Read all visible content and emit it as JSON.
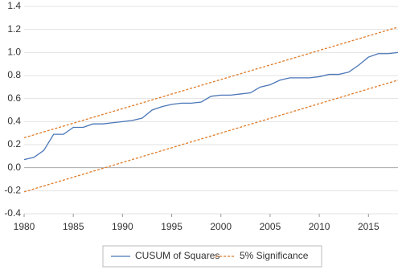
{
  "chart_data": {
    "type": "line",
    "x": [
      1980,
      1981,
      1982,
      1983,
      1984,
      1985,
      1986,
      1987,
      1988,
      1989,
      1990,
      1991,
      1992,
      1993,
      1994,
      1995,
      1996,
      1997,
      1998,
      1999,
      2000,
      2001,
      2002,
      2003,
      2004,
      2005,
      2006,
      2007,
      2008,
      2009,
      2010,
      2011,
      2012,
      2013,
      2014,
      2015,
      2016,
      2017,
      2018
    ],
    "series": [
      {
        "name": "CUSUM of Squares",
        "color": "#4a76b8",
        "values": [
          0.07,
          0.09,
          0.15,
          0.29,
          0.29,
          0.35,
          0.35,
          0.38,
          0.38,
          0.39,
          0.4,
          0.41,
          0.43,
          0.5,
          0.53,
          0.55,
          0.56,
          0.56,
          0.57,
          0.62,
          0.63,
          0.63,
          0.64,
          0.65,
          0.7,
          0.72,
          0.76,
          0.78,
          0.78,
          0.78,
          0.79,
          0.81,
          0.81,
          0.83,
          0.89,
          0.96,
          0.99,
          0.99,
          1.0
        ]
      }
    ],
    "bands": [
      {
        "name": "5% Significance",
        "color": "#e07b28",
        "x": [
          1980,
          2018
        ],
        "upper": [
          0.26,
          1.22
        ],
        "lower": [
          -0.21,
          0.76
        ]
      }
    ],
    "xlim": [
      1980,
      2018
    ],
    "xticks": [
      1980,
      1985,
      1990,
      1995,
      2000,
      2005,
      2010,
      2015
    ],
    "ylim": [
      -0.4,
      1.4
    ],
    "yticks": [
      1.4,
      1.2,
      {
        "value": 1.0,
        "label": "1.0"
      },
      0.8,
      0.6,
      0.4,
      0.2,
      {
        "value": 0.0,
        "label": "0.0"
      },
      -0.2,
      -0.4
    ],
    "grid": true
  }
}
